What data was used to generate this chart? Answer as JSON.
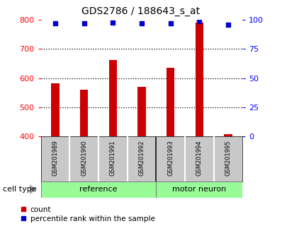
{
  "title": "GDS2786 / 188643_s_at",
  "samples": [
    "GSM201989",
    "GSM201990",
    "GSM201991",
    "GSM201992",
    "GSM201993",
    "GSM201994",
    "GSM201995"
  ],
  "counts": [
    582,
    560,
    662,
    570,
    635,
    790,
    408
  ],
  "percentile_ranks": [
    97,
    97,
    98,
    97,
    97,
    99,
    96
  ],
  "groups": [
    "reference",
    "reference",
    "reference",
    "reference",
    "motor neuron",
    "motor neuron",
    "motor neuron"
  ],
  "ref_count": 4,
  "bar_color": "#CC0000",
  "dot_color": "#0000CC",
  "ylim_left": [
    400,
    800
  ],
  "ylim_right": [
    0,
    100
  ],
  "yticks_left": [
    400,
    500,
    600,
    700,
    800
  ],
  "yticks_right": [
    0,
    25,
    50,
    75,
    100
  ],
  "label_bg": "#c8c8c8",
  "group_green": "#98FB98",
  "cell_type_label": "cell type",
  "legend_count": "count",
  "legend_percentile": "percentile rank within the sample",
  "bar_width": 0.28
}
